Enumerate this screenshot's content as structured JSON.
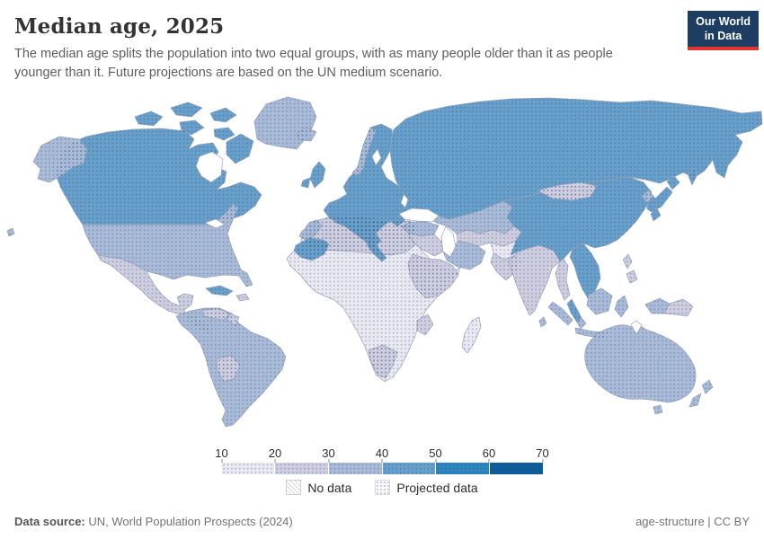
{
  "header": {
    "title": "Median age, 2025",
    "subtitle": "The median age splits the population into two equal groups, with as many people older than it as people younger than it. Future projections are based on the UN medium scenario."
  },
  "logo": {
    "line1": "Our World",
    "line2": "in Data",
    "bg_color": "#1d3d63",
    "accent_color": "#e0342f"
  },
  "legend": {
    "ticks": [
      "10",
      "20",
      "30",
      "40",
      "50",
      "60",
      "70"
    ],
    "no_data_label": "No data",
    "projected_label": "Projected data"
  },
  "footer": {
    "source_label": "Data source:",
    "source_text": " UN, World Population Prospects (2024)",
    "right_text": "age-structure | CC BY"
  },
  "chart_data": {
    "type": "choropleth-world-map",
    "title": "Median age, 2025",
    "unit": "years",
    "bin_edges": [
      10,
      20,
      30,
      40,
      50,
      60,
      70
    ],
    "bin_colors": [
      "#eae9f2",
      "#cfcee1",
      "#a9bbd8",
      "#68a0cb",
      "#2e86c0",
      "#0e5e9d"
    ],
    "all_data_projected": true,
    "region_bins": {
      "greenland": 3,
      "arctic-islands": 4,
      "baffin-island": 4,
      "canada": 4,
      "alaska": 3,
      "usa": 3,
      "mexico": 2,
      "central-america": 2,
      "cuba": 4,
      "hispaniola": 2,
      "hawaii": 3,
      "south-america": 3,
      "venezuela": 2,
      "guyanas": 2,
      "bolivia-paraguay": 2,
      "africa-central": 1,
      "africa-north": 2,
      "morocco": 3,
      "africa-southern": 2,
      "kenya": 2,
      "madagascar": 1,
      "iceland": 3,
      "ireland": 4,
      "uk": 4,
      "norway": 3,
      "europe": 4,
      "iberia": 4,
      "italy": 4,
      "turkey": 3,
      "russia": 4,
      "kazakhstan": 3,
      "central-asia": 2,
      "iran": 3,
      "middle-east": 2,
      "saudi-arabia": 2,
      "afghanistan": 1,
      "pakistan": 2,
      "india": 2,
      "sri-lanka": 3,
      "china": 4,
      "mongolia": 2,
      "north-korea": 3,
      "south-korea": 4,
      "japan": 4,
      "myanmar": 2,
      "indochina": 4,
      "malaysia": 3,
      "philippines": 2,
      "sumatra": 3,
      "java": 3,
      "borneo": 3,
      "sulawesi": 3,
      "west-papua": 3,
      "papua-new-guinea": 2,
      "australia": 3,
      "tasmania": 3,
      "new-zealand": 3
    }
  }
}
